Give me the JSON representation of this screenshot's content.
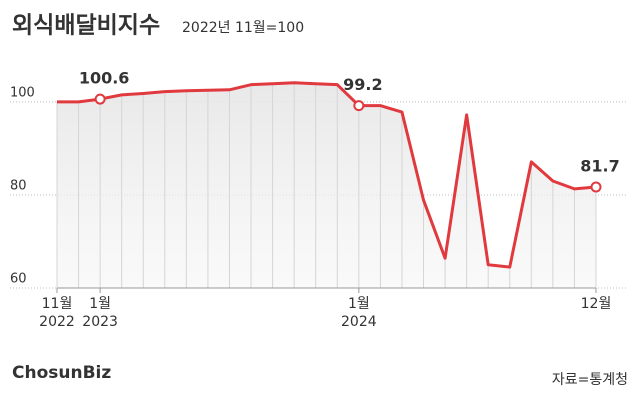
{
  "chart_data": {
    "type": "line",
    "title": "외식배달비지수",
    "subtitle": "2022년 11월=100",
    "source": "자료=통계청",
    "watermark": "ChosunBiz",
    "categories": [
      "11월\n2022",
      null,
      "1월\n2023",
      null,
      null,
      null,
      null,
      null,
      null,
      null,
      null,
      null,
      null,
      null,
      "1월\n2024",
      null,
      null,
      null,
      null,
      null,
      null,
      null,
      null,
      null,
      null,
      "12월"
    ],
    "series": [
      {
        "name": "외식배달비지수",
        "color": "#e0393e",
        "values": [
          100.0,
          100.0,
          100.6,
          101.5,
          101.8,
          102.2,
          102.4,
          102.5,
          102.6,
          103.7,
          103.9,
          104.1,
          103.9,
          103.7,
          99.2,
          99.2,
          97.8,
          78.9,
          66.4,
          97.2,
          65.0,
          64.5,
          87.1,
          83.0,
          81.3,
          81.7
        ],
        "value_labels": [
          null,
          null,
          "100.6",
          null,
          null,
          null,
          null,
          null,
          null,
          null,
          null,
          null,
          null,
          null,
          "99.2",
          null,
          null,
          null,
          null,
          null,
          null,
          null,
          null,
          null,
          null,
          "81.7"
        ]
      }
    ],
    "ylim": [
      60,
      109
    ],
    "yticks": [
      60,
      80,
      100
    ],
    "grid": true
  }
}
